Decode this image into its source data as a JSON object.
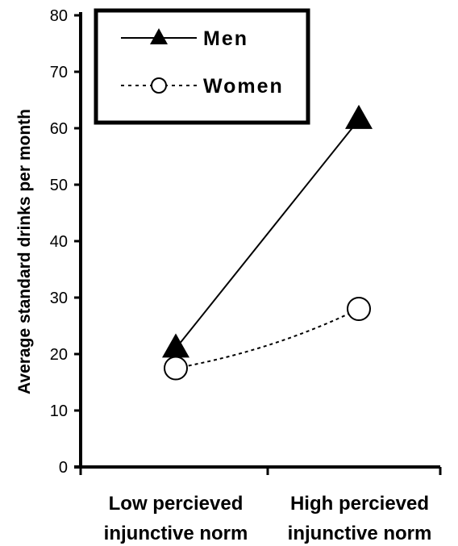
{
  "chart_data": {
    "type": "line",
    "categories": [
      [
        "Low percieved",
        "injunctive norm"
      ],
      [
        "High percieved",
        "injunctive norm"
      ]
    ],
    "ylabel": "Average standard drinks per month",
    "xlabel": "",
    "ylim": [
      0,
      80
    ],
    "yticks": [
      0,
      10,
      20,
      30,
      40,
      50,
      60,
      70,
      80
    ],
    "grid": false,
    "legend_position": "top-left",
    "series": [
      {
        "name": "Men",
        "values": [
          21,
          61.5
        ],
        "marker": "triangle-filled",
        "line": "solid",
        "color": "#000000"
      },
      {
        "name": "Women",
        "values": [
          17.5,
          28
        ],
        "marker": "circle-open",
        "line": "dotted",
        "color": "#000000"
      }
    ]
  }
}
